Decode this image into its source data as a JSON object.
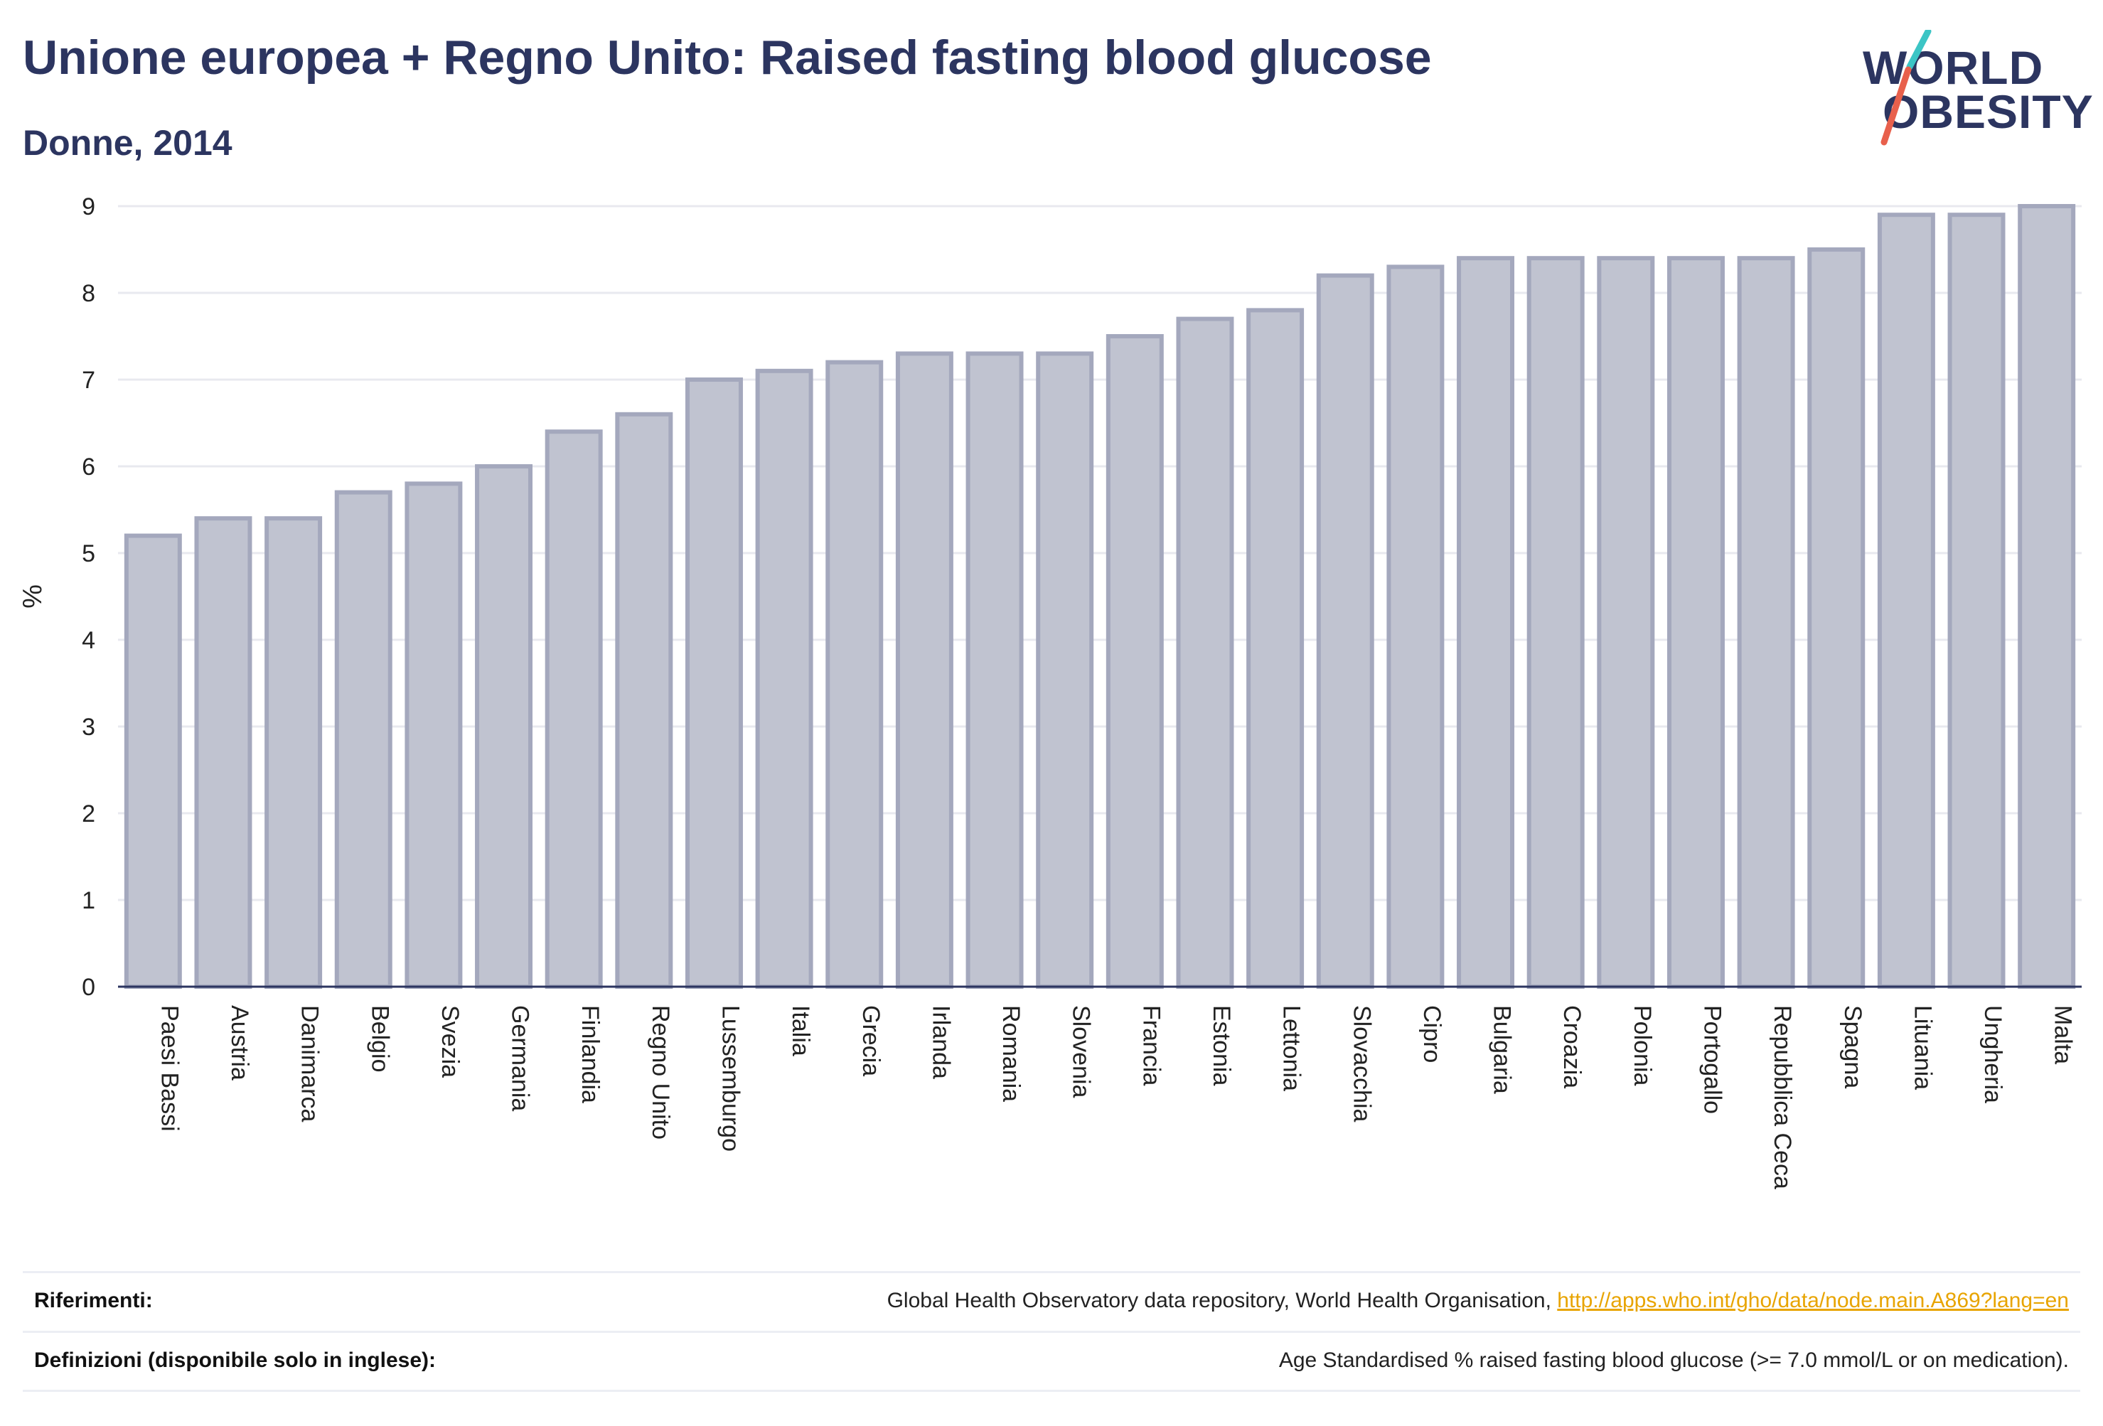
{
  "header": {
    "title": "Unione europea + Regno Unito: Raised fasting blood glucose",
    "subtitle": "Donne, 2014"
  },
  "logo": {
    "line1": "WORLD",
    "line2": "OBESITY",
    "colors": {
      "text": "#2c3560",
      "slash_top": "#3cc5c5",
      "slash_bottom": "#e8604c"
    }
  },
  "chart_data": {
    "type": "bar",
    "categories": [
      "Paesi Bassi",
      "Austria",
      "Danimarca",
      "Belgio",
      "Svezia",
      "Germania",
      "Finlandia",
      "Regno Unito",
      "Lussemburgo",
      "Italia",
      "Grecia",
      "Irlanda",
      "Romania",
      "Slovenia",
      "Francia",
      "Estonia",
      "Lettonia",
      "Slovacchia",
      "Cipro",
      "Bulgaria",
      "Croazia",
      "Polonia",
      "Portogallo",
      "Repubblica Ceca",
      "Spagna",
      "Lituania",
      "Ungheria",
      "Malta"
    ],
    "values": [
      5.2,
      5.4,
      5.4,
      5.7,
      5.8,
      6.0,
      6.4,
      6.6,
      7.0,
      7.1,
      7.2,
      7.3,
      7.3,
      7.3,
      7.5,
      7.7,
      7.8,
      8.2,
      8.3,
      8.4,
      8.4,
      8.4,
      8.4,
      8.4,
      8.5,
      8.9,
      8.9,
      9.0
    ],
    "ylabel": "%",
    "xlabel": "",
    "ylim": [
      0,
      9
    ],
    "yticks": [
      0,
      1,
      2,
      3,
      4,
      5,
      6,
      7,
      8,
      9
    ],
    "grid": true,
    "colors": {
      "bar_fill": "#c0c3d0",
      "bar_stroke": "#a4a8bd",
      "grid": "#e8e9ef",
      "axis": "#2c3560"
    }
  },
  "footer": {
    "references_label": "Riferimenti:",
    "references_text": "Global Health Observatory data repository, World Health Organisation, ",
    "references_link": "http://apps.who.int/gho/data/node.main.A869?lang=en",
    "definitions_label": "Definizioni (disponibile solo in inglese):",
    "definitions_text": "Age Standardised % raised fasting blood glucose (>= 7.0 mmol/L or on medication)."
  }
}
